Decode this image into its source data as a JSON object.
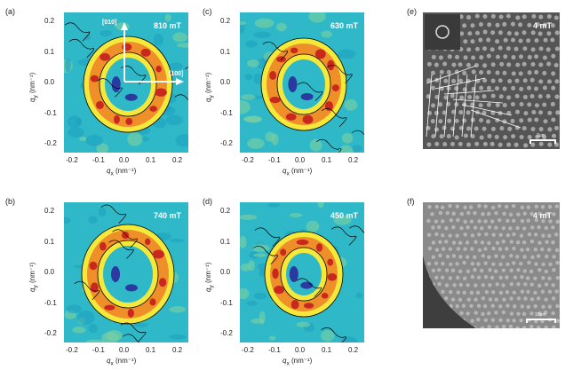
{
  "panels": [
    {
      "label": "(a)",
      "field": "810 mT",
      "arrow_y": "[010]",
      "arrow_x": "[100]"
    },
    {
      "label": "(c)",
      "field": "630 mT"
    },
    {
      "label": "(b)",
      "field": "740 mT"
    },
    {
      "label": "(d)",
      "field": "450 mT"
    }
  ],
  "axes": {
    "xlabel_q": "q",
    "xlabel_sub": "x",
    "xlabel_unit": "(nm⁻¹)",
    "ylabel_q": "q",
    "ylabel_sub": "y",
    "ylabel_unit": "(nm⁻¹)",
    "xticks": [
      "-0.2",
      "-0.1",
      "0.0",
      "0.1",
      "0.2"
    ],
    "yticks": [
      "0.2",
      "0.1",
      "0.0",
      "-0.1",
      "-0.2"
    ]
  },
  "micrographs": [
    {
      "label": "(e)",
      "field": "4 mT",
      "scale": "2μm"
    },
    {
      "label": "(f)",
      "field": "4 mT",
      "scale": "10μm"
    }
  ],
  "colors": {
    "bg": "#2fb8c8",
    "yellow": "#f4e83a",
    "orange": "#ef8f2a",
    "red": "#c8281e",
    "blue": "#2a3aa0"
  }
}
